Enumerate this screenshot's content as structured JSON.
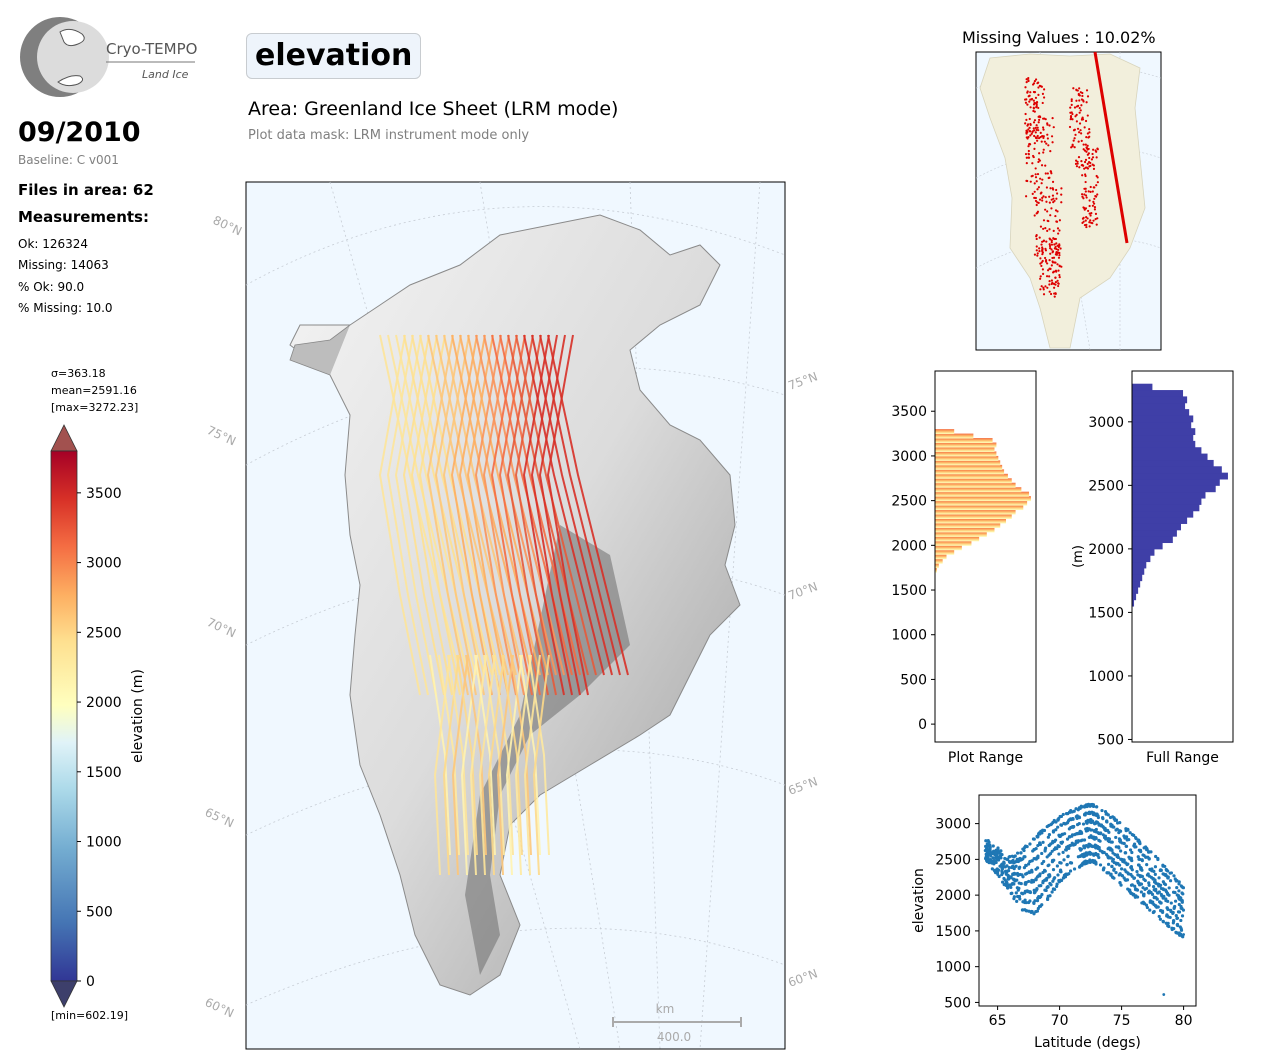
{
  "logo": {
    "name": "Cryo-TEMPO",
    "subtitle": "Land Ice"
  },
  "date": "09/2010",
  "baseline": "Baseline: C v001",
  "files_in_area": "Files in area: 62",
  "measurements_title": "Measurements:",
  "stats": {
    "ok": "Ok: 126324",
    "missing": "Missing: 14063",
    "pct_ok": "% Ok: 90.0",
    "pct_missing": "% Missing: 10.0"
  },
  "variable": "elevation",
  "area_title": "Area: Greenland Ice Sheet (LRM mode)",
  "mask_note": "Plot data mask: LRM instrument mode only",
  "colorbar": {
    "sigma": "σ=363.18",
    "mean": "mean=2591.16",
    "max": "[max=3272.23]",
    "min": "[min=602.19]",
    "label": "elevation (m)",
    "ticks": [
      "0",
      "500",
      "1000",
      "1500",
      "2000",
      "2500",
      "3000",
      "3500"
    ],
    "range": [
      0,
      3800
    ],
    "colors": {
      "low": "#313695",
      "mid": "#ffffbf",
      "high": "#a50026"
    }
  },
  "map": {
    "lat_labels": [
      "80°N",
      "75°N",
      "70°N",
      "65°N",
      "60°N"
    ],
    "lat_labels_right": [
      "75°N",
      "70°N",
      "65°N",
      "60°N"
    ],
    "scale_unit": "km",
    "scale_value": "400.0",
    "ocean_color": "#f0f8ff"
  },
  "missing": {
    "title": "Missing Values : 10.02%",
    "marker_color": "#dd0000",
    "land_color": "#f2efdc"
  },
  "chart_data": [
    {
      "type": "bar",
      "orientation": "horizontal",
      "title": "",
      "xlabel": "Plot Range",
      "ylabel": "",
      "ylim": [
        -200,
        3950
      ],
      "yticks": [
        "0",
        "500",
        "1000",
        "1500",
        "2000",
        "2500",
        "3000",
        "3500"
      ],
      "bin_starts": [
        1700,
        1750,
        1800,
        1850,
        1900,
        1950,
        2000,
        2050,
        2100,
        2150,
        2200,
        2250,
        2300,
        2350,
        2400,
        2450,
        2500,
        2550,
        2600,
        2650,
        2700,
        2750,
        2800,
        2850,
        2900,
        2950,
        3000,
        3050,
        3100,
        3150,
        3200,
        3250
      ],
      "counts": [
        2,
        4,
        8,
        12,
        20,
        28,
        38,
        46,
        54,
        62,
        68,
        74,
        80,
        84,
        92,
        96,
        100,
        98,
        90,
        84,
        80,
        76,
        72,
        70,
        68,
        66,
        64,
        62,
        64,
        60,
        40,
        20
      ]
    },
    {
      "type": "bar",
      "orientation": "horizontal",
      "title": "",
      "xlabel": "Full Range",
      "ylabel": "(m)",
      "ylim": [
        480,
        3400
      ],
      "yticks": [
        "500",
        "1000",
        "1500",
        "2000",
        "2500",
        "3000"
      ],
      "color": "#3f3fa7",
      "bin_starts": [
        1550,
        1600,
        1650,
        1700,
        1750,
        1800,
        1850,
        1900,
        1950,
        2000,
        2050,
        2100,
        2150,
        2200,
        2250,
        2300,
        2350,
        2400,
        2450,
        2500,
        2550,
        2600,
        2650,
        2700,
        2750,
        2800,
        2850,
        2900,
        2950,
        3000,
        3050,
        3100,
        3150,
        3200,
        3250
      ],
      "counts": [
        2,
        4,
        6,
        8,
        10,
        12,
        14,
        18,
        22,
        30,
        40,
        44,
        48,
        54,
        60,
        66,
        68,
        72,
        82,
        86,
        94,
        88,
        80,
        74,
        68,
        62,
        60,
        62,
        58,
        60,
        56,
        52,
        54,
        50,
        20
      ]
    },
    {
      "type": "scatter",
      "title": "",
      "xlabel": "Latitude (degs)",
      "ylabel": "elevation",
      "xlim": [
        63.5,
        81
      ],
      "ylim": [
        450,
        3400
      ],
      "xticks": [
        "65",
        "70",
        "75",
        "80"
      ],
      "yticks": [
        "500",
        "1000",
        "1500",
        "2000",
        "2500",
        "3000"
      ],
      "color": "#1f77b4",
      "envelope": {
        "x": [
          64.0,
          65.0,
          66.0,
          67.0,
          68.0,
          69.0,
          70.0,
          71.0,
          72.0,
          72.5,
          73.0,
          74.0,
          75.0,
          76.0,
          77.0,
          78.0,
          79.0,
          80.0
        ],
        "upper": [
          2780,
          2650,
          2520,
          2620,
          2800,
          2950,
          3080,
          3180,
          3240,
          3260,
          3230,
          3120,
          2980,
          2820,
          2650,
          2480,
          2300,
          2100
        ],
        "lower": [
          2500,
          2300,
          2050,
          1800,
          1750,
          1950,
          2200,
          2350,
          2450,
          2480,
          2450,
          2300,
          2150,
          2000,
          1850,
          1700,
          1550,
          1400
        ]
      },
      "outliers": [
        [
          78.4,
          610
        ],
        [
          80.0,
          1450
        ]
      ]
    }
  ]
}
